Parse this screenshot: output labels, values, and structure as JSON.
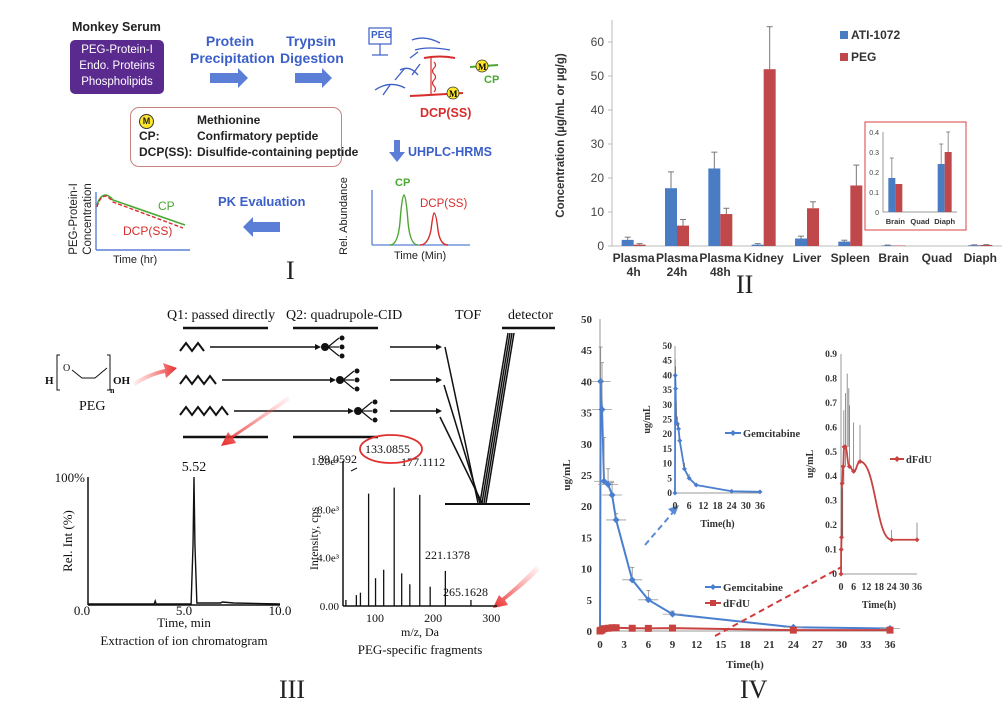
{
  "panels": {
    "I": {
      "roman": "I",
      "serum_title": "Monkey Serum",
      "serum_items": [
        "PEG-Protein-I",
        "Endo. Proteins",
        "Phospholipids"
      ],
      "step1": [
        "Protein",
        "Precipitation"
      ],
      "step2": [
        "Trypsin",
        "Digestion"
      ],
      "peg_box": "PEG",
      "m_label": "M",
      "cp_label": "CP",
      "dcp_label": "DCP(SS)",
      "step3": "UHPLC-HRMS",
      "step4": "PK Evaluation",
      "legend": [
        {
          "key": "M",
          "value": "Methionine"
        },
        {
          "key": "CP:",
          "value": "Confirmatory peptide"
        },
        {
          "key": "DCP(SS):",
          "value": "Disulfide-containing peptide"
        }
      ],
      "chromatogram": {
        "ylabel": "Rel. Abundance",
        "xlabel": "Time (Min)",
        "peaks": [
          "CP",
          "DCP(SS)"
        ]
      },
      "pk_plot": {
        "ylabel": [
          "PEG-Protein-I",
          "Concentration"
        ],
        "xlabel": "Time (hr)",
        "series": [
          "CP",
          "DCP(SS)"
        ]
      },
      "colors": {
        "blue": "#3b5fc8",
        "purple": "#5a2a8f",
        "green": "#4aa832",
        "red": "#d62d2d",
        "yellow": "#ffe82a"
      }
    },
    "II": {
      "roman": "II",
      "inset_frame_color": "#e06060"
    },
    "III": {
      "roman": "III",
      "q1_label": "Q1: passed directly",
      "q2_label": "Q2: quadrupole-CID",
      "tof_label": "TOF",
      "detector_label": "detector",
      "peg_label": "PEG",
      "peg_formula": {
        "H": "H",
        "O": "O",
        "OH": "OH",
        "n": "n"
      },
      "peak_label": "5.52",
      "chrom_caption": "Extraction of ion chromatogram",
      "ms_caption": "PEG-specific fragments",
      "highlight_color": "#e03030"
    },
    "IV": {
      "roman": "IV"
    }
  },
  "chart_data": [
    {
      "id": "panel-II-main",
      "type": "bar",
      "title": "",
      "xlabel": "",
      "ylabel": "Concentration (µg/mL or µg/g)",
      "ylim": [
        0,
        65
      ],
      "yticks": [
        0,
        10,
        20,
        30,
        40,
        50,
        60
      ],
      "categories": [
        "Plasma 4h",
        "Plasma 24h",
        "Plasma 48h",
        "Kidney",
        "Liver",
        "Spleen",
        "Brain",
        "Quad",
        "Diaph"
      ],
      "category_lines": [
        [
          "Plasma",
          "4h"
        ],
        [
          "Plasma",
          "24h"
        ],
        [
          "Plasma",
          "48h"
        ],
        [
          "Kidney"
        ],
        [
          "Liver"
        ],
        [
          "Spleen"
        ],
        [
          "Brain"
        ],
        [
          "Quad"
        ],
        [
          "Diaph"
        ]
      ],
      "series": [
        {
          "name": "ATI-1072",
          "color": "#4a7cc4",
          "values": [
            1.8,
            17,
            22.8,
            0.4,
            2.2,
            1.3,
            0.17,
            0,
            0.24
          ],
          "errors": [
            0.8,
            4.8,
            4.8,
            0.3,
            0.7,
            0.4,
            0.1,
            0,
            0.1
          ]
        },
        {
          "name": "PEG",
          "color": "#c0484a",
          "values": [
            0.4,
            6,
            9.4,
            52,
            11.1,
            17.8,
            0.14,
            0,
            0.3
          ],
          "errors": [
            0.3,
            1.8,
            1.7,
            12.5,
            1.9,
            6,
            0,
            0,
            0.1
          ]
        }
      ],
      "legend": "top-right",
      "grid": false
    },
    {
      "id": "panel-II-inset",
      "type": "bar",
      "ylim": [
        0,
        0.4
      ],
      "yticks": [
        0,
        0.1,
        0.2,
        0.3,
        0.4
      ],
      "ytick_labels": [
        "0",
        "0.1",
        "0.2",
        "0.3",
        "0.4"
      ],
      "categories": [
        "Brain",
        "Quad",
        "Diaph"
      ],
      "series": [
        {
          "name": "ATI-1072",
          "color": "#4a7cc4",
          "values": [
            0.17,
            0,
            0.24
          ],
          "errors": [
            0.1,
            0,
            0.1
          ]
        },
        {
          "name": "PEG",
          "color": "#c0484a",
          "values": [
            0.14,
            0,
            0.3
          ],
          "errors": [
            0,
            0,
            0.1
          ]
        }
      ]
    },
    {
      "id": "panel-III-chromatogram",
      "type": "line",
      "xlabel": "Time, min",
      "ylabel": "Rel. Int (%)",
      "xlim": [
        0,
        10
      ],
      "xtick_labels": [
        "0.0",
        "5.0",
        "10.0"
      ],
      "xticks": [
        0,
        5,
        10
      ],
      "ytick_labels": [
        "0.0",
        "100%"
      ],
      "peak": {
        "x": 5.52,
        "y": 100,
        "label": "5.52"
      },
      "minor_peaks": [
        {
          "x": 3.5,
          "y": 3
        },
        {
          "x": 6.9,
          "y": 2
        }
      ]
    },
    {
      "id": "panel-III-ms",
      "type": "bar",
      "xlabel": "m/z, Da",
      "ylabel": "Intensity, cps",
      "xlim": [
        45,
        310
      ],
      "ylim": [
        0,
        12000
      ],
      "xticks": [
        100,
        200,
        300
      ],
      "yticks": [
        0,
        4000,
        8000,
        12000
      ],
      "ytick_labels": [
        "0.00",
        "4.0e³",
        "8.0e³",
        "1.20e⁴"
      ],
      "peaks": [
        {
          "mz": 50,
          "intensity": 500
        },
        {
          "mz": 68,
          "intensity": 900
        },
        {
          "mz": 75,
          "intensity": 1100
        },
        {
          "mz": 89.0592,
          "intensity": 9300,
          "label": "89.0592"
        },
        {
          "mz": 101,
          "intensity": 2300
        },
        {
          "mz": 115,
          "intensity": 3000
        },
        {
          "mz": 133.0855,
          "intensity": 9800,
          "label": "133.0855",
          "highlight": true
        },
        {
          "mz": 146,
          "intensity": 2700
        },
        {
          "mz": 160,
          "intensity": 1800
        },
        {
          "mz": 177.1112,
          "intensity": 9200,
          "label": "177.1112"
        },
        {
          "mz": 195,
          "intensity": 1600
        },
        {
          "mz": 221.1378,
          "intensity": 2900,
          "label": "221.1378"
        },
        {
          "mz": 265.1628,
          "intensity": 500,
          "label": "265.1628"
        }
      ]
    },
    {
      "id": "panel-IV-main",
      "type": "line",
      "xlabel": "Time(h)",
      "ylabel": "ug/mL",
      "xlim": [
        0,
        36
      ],
      "ylim": [
        0,
        50
      ],
      "xticks": [
        0,
        3,
        6,
        9,
        12,
        15,
        18,
        21,
        24,
        27,
        30,
        33,
        36
      ],
      "yticks": [
        0,
        5,
        10,
        15,
        20,
        25,
        30,
        35,
        40,
        45,
        50
      ],
      "series": [
        {
          "name": "Gemcitabine",
          "color": "#4a7fd0",
          "marker": "diamond",
          "x": [
            0,
            0.083,
            0.25,
            0.5,
            1,
            1.5,
            2,
            4,
            6,
            9,
            24,
            36
          ],
          "y": [
            0,
            40,
            35.5,
            24,
            23.5,
            21.8,
            17.8,
            8.2,
            5,
            2.7,
            0.6,
            0.4
          ],
          "err": [
            0,
            5.5,
            7.5,
            7,
            2.5,
            2,
            1,
            2,
            1.5,
            0.5,
            0.2,
            0.1
          ]
        },
        {
          "name": "dFdU",
          "color": "#c8423f",
          "marker": "square",
          "x": [
            0,
            0.083,
            0.25,
            0.5,
            1,
            1.5,
            2,
            4,
            6,
            9,
            24,
            36
          ],
          "y": [
            0,
            0.1,
            0.15,
            0.37,
            0.44,
            0.52,
            0.52,
            0.44,
            0.42,
            0.46,
            0.14,
            0.14
          ],
          "err": [
            0,
            0.1,
            0.2,
            0.3,
            0.3,
            0.3,
            0.24,
            0.25,
            0.2,
            0.15,
            0.04,
            0.07
          ]
        }
      ],
      "legend": "center-right"
    },
    {
      "id": "panel-IV-inset-gemcitabine",
      "type": "line",
      "xlabel": "Time(h)",
      "ylabel": "ug/mL",
      "xlim": [
        0,
        36
      ],
      "ylim": [
        0,
        50
      ],
      "xticks": [
        0,
        6,
        12,
        18,
        24,
        30,
        36
      ],
      "yticks": [
        0,
        5,
        10,
        15,
        20,
        25,
        30,
        35,
        40,
        45,
        50
      ],
      "series": [
        {
          "name": "Gemcitabine",
          "color": "#4a7fd0"
        }
      ]
    },
    {
      "id": "panel-IV-inset-dfdu",
      "type": "line",
      "xlabel": "Time(h)",
      "ylabel": "ug/mL",
      "xlim": [
        0,
        36
      ],
      "ylim": [
        0,
        0.9
      ],
      "xticks": [
        0,
        6,
        12,
        18,
        24,
        30,
        36
      ],
      "yticks": [
        0,
        0.1,
        0.2,
        0.3,
        0.4,
        0.5,
        0.6,
        0.7,
        0.8,
        0.9
      ],
      "series": [
        {
          "name": "dFdU",
          "color": "#c8423f"
        }
      ]
    }
  ]
}
